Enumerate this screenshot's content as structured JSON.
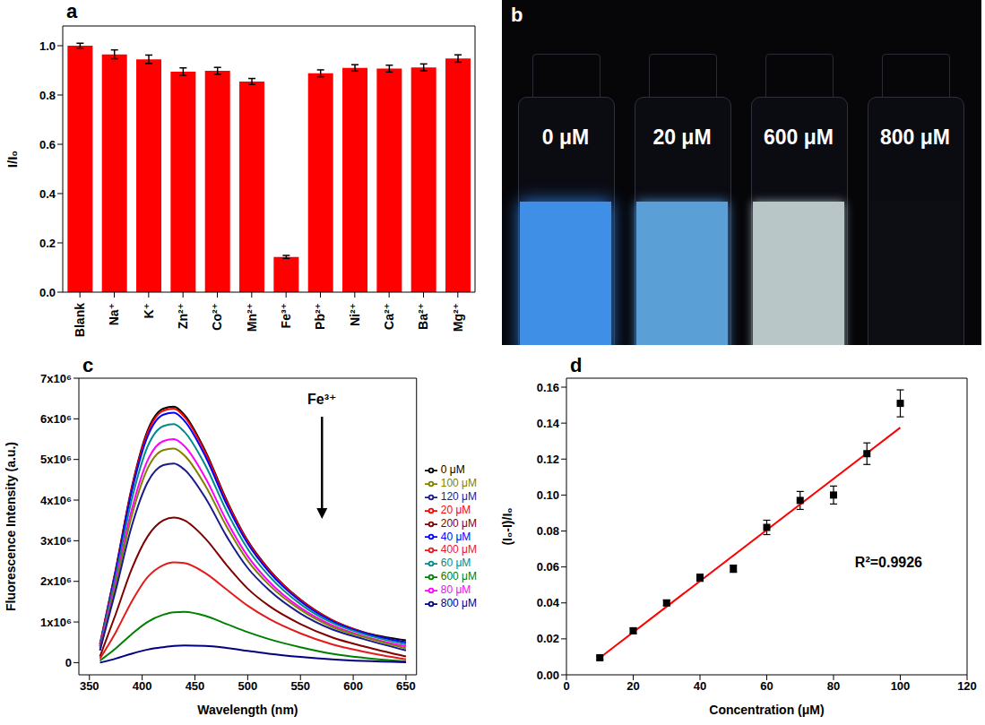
{
  "chart_data": [
    {
      "type": "bar",
      "panel": "a",
      "y_label": "I/I₀",
      "categories": [
        "Blank",
        "Na⁺",
        "K⁺",
        "Zn²⁺",
        "Co²⁺",
        "Mn²⁺",
        "Fe³⁺",
        "Pb²⁺",
        "Ni²⁺",
        "Ca²⁺",
        "Ba²⁺",
        "Mg²⁺"
      ],
      "values": [
        1.0,
        0.965,
        0.945,
        0.895,
        0.898,
        0.855,
        0.143,
        0.888,
        0.91,
        0.907,
        0.912,
        0.948
      ],
      "errors": [
        0.01,
        0.018,
        0.017,
        0.015,
        0.014,
        0.012,
        0.006,
        0.014,
        0.013,
        0.014,
        0.014,
        0.015
      ],
      "color": "#ff0000",
      "ylim": [
        0,
        1.08
      ],
      "yticks": [
        {
          "value": 0,
          "label": "0.0"
        },
        0.2,
        0.4,
        0.6,
        0.8,
        {
          "value": 1,
          "label": "1.0"
        }
      ]
    },
    {
      "type": "image",
      "panel": "b",
      "labels": [
        "0 μM",
        "20 μM",
        "600 μM",
        "800 μM"
      ]
    },
    {
      "type": "line",
      "panel": "c",
      "x_label": "Wavelength (nm)",
      "y_label": "Fluorescence Intensity (a.u.)",
      "x": [
        360,
        375,
        390,
        405,
        420,
        430,
        440,
        460,
        480,
        500,
        520,
        550,
        580,
        610,
        650
      ],
      "series": [
        {
          "name": "0 μM",
          "color": "#000000",
          "values": [
            450000,
            2300000,
            4300000,
            5700000,
            6250000,
            6300000,
            6100000,
            5200000,
            4000000,
            3000000,
            2300000,
            1550000,
            1050000,
            750000,
            550000
          ]
        },
        {
          "name": "20 μM",
          "color": "#ff0000",
          "values": [
            450000,
            2280000,
            4270000,
            5650000,
            6200000,
            6250000,
            6050000,
            5160000,
            3970000,
            2980000,
            2280000,
            1540000,
            1040000,
            740000,
            500000
          ]
        },
        {
          "name": "40 μM",
          "color": "#0000ff",
          "values": [
            400000,
            2240000,
            4200000,
            5560000,
            6100000,
            6150000,
            5950000,
            5070000,
            3900000,
            2930000,
            2240000,
            1510000,
            1020000,
            730000,
            500000
          ]
        },
        {
          "name": "60 μM",
          "color": "#008b8b",
          "values": [
            400000,
            2140000,
            4000000,
            5310000,
            5820000,
            5870000,
            5680000,
            4850000,
            3730000,
            2800000,
            2140000,
            1440000,
            980000,
            700000,
            450000
          ]
        },
        {
          "name": "80 μM",
          "color": "#ff00ff",
          "values": [
            350000,
            2000000,
            3750000,
            4970000,
            5450000,
            5500000,
            5330000,
            4540000,
            3490000,
            2620000,
            2000000,
            1350000,
            920000,
            650000,
            400000
          ]
        },
        {
          "name": "100 μM",
          "color": "#808000",
          "values": [
            300000,
            1920000,
            3600000,
            4770000,
            5230000,
            5270000,
            5100000,
            4350000,
            3350000,
            2510000,
            1920000,
            1300000,
            880000,
            630000,
            350000
          ]
        },
        {
          "name": "120 μM",
          "color": "#1a1a8c",
          "values": [
            300000,
            1790000,
            3350000,
            4430000,
            4860000,
            4900000,
            4750000,
            4050000,
            3110000,
            2330000,
            1790000,
            1210000,
            820000,
            580000,
            300000
          ]
        },
        {
          "name": "200 μM",
          "color": "#800000",
          "values": [
            150000,
            1200000,
            2300000,
            3100000,
            3500000,
            3570000,
            3500000,
            3050000,
            2400000,
            1820000,
            1400000,
            950000,
            620000,
            400000,
            150000
          ]
        },
        {
          "name": "400 μM",
          "color": "#e41a1c",
          "values": [
            100000,
            750000,
            1500000,
            2100000,
            2400000,
            2470000,
            2450000,
            2200000,
            1800000,
            1400000,
            1080000,
            720000,
            450000,
            270000,
            80000
          ]
        },
        {
          "name": "600 μM",
          "color": "#008000",
          "values": [
            50000,
            350000,
            700000,
            1000000,
            1180000,
            1240000,
            1250000,
            1150000,
            950000,
            750000,
            580000,
            380000,
            220000,
            120000,
            30000
          ]
        },
        {
          "name": "800 μM",
          "color": "#000080",
          "values": [
            0,
            100000,
            220000,
            320000,
            380000,
            410000,
            420000,
            410000,
            360000,
            290000,
            220000,
            140000,
            80000,
            40000,
            10000
          ]
        }
      ],
      "xlim": [
        340,
        660
      ],
      "xticks": [
        350,
        400,
        450,
        500,
        550,
        600,
        650
      ],
      "ylim": [
        -300000,
        7000000
      ],
      "yticks": [
        0,
        {
          "value": 1000000,
          "label": "1x10⁶"
        },
        {
          "value": 2000000,
          "label": "2x10⁶"
        },
        {
          "value": 3000000,
          "label": "3x10⁶"
        },
        {
          "value": 4000000,
          "label": "4x10⁶"
        },
        {
          "value": 5000000,
          "label": "5x10⁶"
        },
        {
          "value": 6000000,
          "label": "6x10⁶"
        },
        {
          "value": 7000000,
          "label": "7x10⁶"
        }
      ],
      "legend": "right",
      "annotation": "Fe³⁺"
    },
    {
      "type": "scatter",
      "panel": "d",
      "x_label": "Concentration (μM)",
      "y_label": "(I₀-I)/I₀",
      "x": [
        10,
        20,
        30,
        40,
        50,
        60,
        70,
        80,
        90,
        100
      ],
      "values": [
        0.0095,
        0.0245,
        0.04,
        0.054,
        0.059,
        0.082,
        0.097,
        0.1,
        0.123,
        0.151
      ],
      "errors": [
        0.001,
        0.0015,
        0.0015,
        0.002,
        0.002,
        0.004,
        0.005,
        0.005,
        0.006,
        0.0075
      ],
      "color": "#000000",
      "marker": "square",
      "fit": {
        "x": [
          10,
          100
        ],
        "values": [
          0.0095,
          0.1375
        ],
        "color": "#ff0000"
      },
      "annotation": "R²=0.9926",
      "xlim": [
        0,
        120
      ],
      "xticks": [
        0,
        20,
        40,
        60,
        80,
        100,
        120
      ],
      "ylim": [
        0,
        0.165
      ],
      "yticks": [
        {
          "value": 0,
          "label": "0.00"
        },
        0.02,
        0.04,
        0.06,
        0.08,
        {
          "value": 0.1,
          "label": "0.10"
        },
        0.12,
        0.14,
        0.16
      ]
    }
  ]
}
